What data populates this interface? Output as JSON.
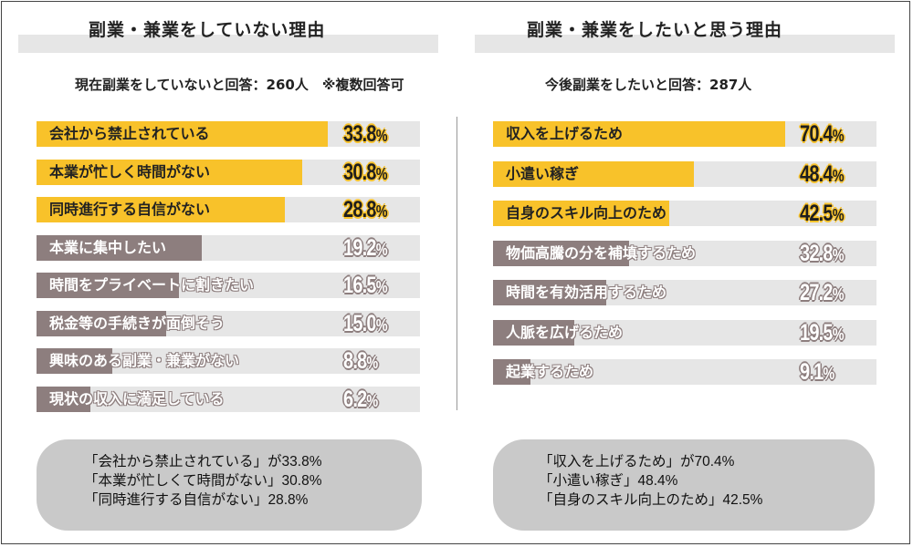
{
  "colors": {
    "highlight": "#f8c22a",
    "muted": "#8d7e7e",
    "track": "#e6e6e6",
    "summary_bg": "#c9c9c9"
  },
  "left": {
    "title": "副業・兼業をしていない理由",
    "respondents": "現在副業をしていないと回答：260人　※複数回答可",
    "summary": [
      "「会社から禁止されている」が33.8%",
      "「本業が忙しくて時間がない」30.8%",
      "「同時進行する自信がない」28.8%"
    ]
  },
  "right": {
    "title": "副業・兼業をしたいと思う理由",
    "respondents": "今後副業をしたいと回答：287人",
    "summary": [
      "「収入を上げるため」が70.4%",
      "「小遣い稼ぎ」48.4%",
      "「自身のスキル向上のため」42.5%"
    ]
  },
  "chart_data": [
    {
      "type": "bar",
      "title": "副業・兼業をしていない理由",
      "categories": [
        "会社から禁止されている",
        "本業が忙しく時間がない",
        "同時進行する自信がない",
        "本業に集中したい",
        "時間をプライベートに割きたい",
        "税金等の手続きが面倒そう",
        "興味のある副業・兼業がない",
        "現状の収入に満足している"
      ],
      "values": [
        33.8,
        30.8,
        28.8,
        19.2,
        16.5,
        15.0,
        8.8,
        6.2
      ],
      "labels": [
        "33.8",
        "30.8",
        "28.8",
        "19.2",
        "16.5",
        "15.0",
        "8.8",
        "6.2"
      ],
      "unit": "%",
      "highlighted": [
        true,
        true,
        true,
        false,
        false,
        false,
        false,
        false
      ],
      "xlim": [
        0,
        100
      ]
    },
    {
      "type": "bar",
      "title": "副業・兼業をしたいと思う理由",
      "categories": [
        "収入を上げるため",
        "小遣い稼ぎ",
        "自身のスキル向上のため",
        "物価高騰の分を補填するため",
        "時間を有効活用するため",
        "人脈を広げるため",
        "起業するため"
      ],
      "values": [
        70.4,
        48.4,
        42.5,
        32.8,
        27.2,
        19.5,
        9.1
      ],
      "labels": [
        "70.4",
        "48.4",
        "42.5",
        "32.8",
        "27.2",
        "19.5",
        "9.1"
      ],
      "unit": "%",
      "highlighted": [
        true,
        true,
        true,
        false,
        false,
        false,
        false
      ],
      "xlim": [
        0,
        100
      ]
    }
  ]
}
